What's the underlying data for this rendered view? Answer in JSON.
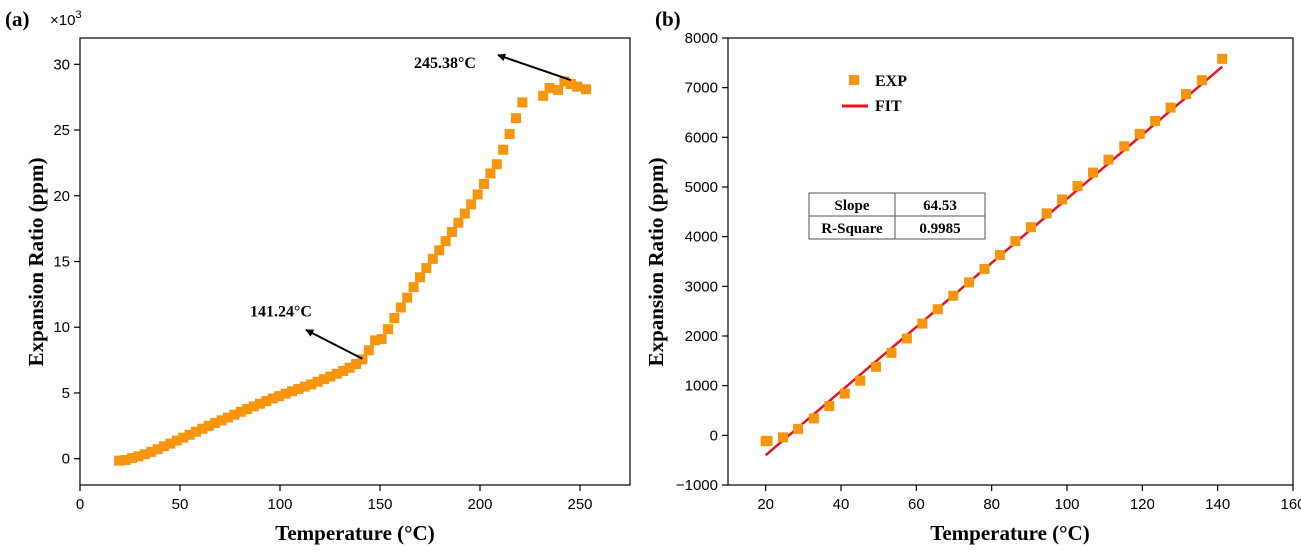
{
  "colors": {
    "exp": "#f7950f",
    "fit": "#e8141b",
    "arrow": "#000000"
  },
  "chart_data": [
    {
      "panel_label": "(a)",
      "type": "scatter",
      "xlabel": "Temperature (°C)",
      "ylabel": "Expansion Ratio (ppm)",
      "y_multiplier": "×10",
      "y_multiplier_exp": "3",
      "xlim": [
        0,
        275
      ],
      "ylim": [
        -2,
        32
      ],
      "xticks": [
        0,
        50,
        100,
        150,
        200,
        250
      ],
      "yticks": [
        0,
        5,
        10,
        15,
        20,
        25,
        30
      ],
      "series": [
        {
          "marker": "square",
          "points": [
            [
              19.6,
              -0.15
            ],
            [
              22.8,
              -0.1
            ],
            [
              26,
              0.05
            ],
            [
              29.2,
              0.18
            ],
            [
              32.4,
              0.34
            ],
            [
              35.6,
              0.52
            ],
            [
              38.8,
              0.72
            ],
            [
              42,
              0.95
            ],
            [
              45.2,
              1.15
            ],
            [
              48.4,
              1.38
            ],
            [
              51.6,
              1.6
            ],
            [
              54.8,
              1.82
            ],
            [
              58,
              2.05
            ],
            [
              61.2,
              2.28
            ],
            [
              64.4,
              2.5
            ],
            [
              67.6,
              2.72
            ],
            [
              70.8,
              2.92
            ],
            [
              74,
              3.13
            ],
            [
              77.2,
              3.35
            ],
            [
              80.4,
              3.57
            ],
            [
              83.6,
              3.78
            ],
            [
              86.8,
              3.98
            ],
            [
              90,
              4.18
            ],
            [
              93.2,
              4.38
            ],
            [
              96.4,
              4.58
            ],
            [
              99.6,
              4.76
            ],
            [
              102.8,
              4.95
            ],
            [
              106,
              5.13
            ],
            [
              109.2,
              5.3
            ],
            [
              112.4,
              5.48
            ],
            [
              115.6,
              5.65
            ],
            [
              118.8,
              5.85
            ],
            [
              122,
              6.05
            ],
            [
              125.2,
              6.25
            ],
            [
              128.4,
              6.46
            ],
            [
              131.6,
              6.67
            ],
            [
              134.8,
              6.92
            ],
            [
              138,
              7.2
            ],
            [
              141.2,
              7.55
            ],
            [
              144.4,
              8.25
            ],
            [
              147.6,
              9.0
            ],
            [
              150.8,
              9.1
            ],
            [
              154,
              9.85
            ],
            [
              157.2,
              10.7
            ],
            [
              160.4,
              11.5
            ],
            [
              163.6,
              12.25
            ],
            [
              166.8,
              13.05
            ],
            [
              170,
              13.8
            ],
            [
              173.2,
              14.5
            ],
            [
              176.4,
              15.2
            ],
            [
              179.6,
              15.85
            ],
            [
              182.8,
              16.55
            ],
            [
              186,
              17.25
            ],
            [
              189.2,
              17.95
            ],
            [
              192.4,
              18.65
            ],
            [
              195.6,
              19.35
            ],
            [
              198.8,
              20.1
            ],
            [
              202,
              20.9
            ],
            [
              205.2,
              21.7
            ],
            [
              208.4,
              22.4
            ],
            [
              211.6,
              23.5
            ],
            [
              214.8,
              24.7
            ],
            [
              218,
              25.9
            ],
            [
              221.2,
              27.1
            ],
            [
              231.6,
              27.6
            ],
            [
              234.8,
              28.2
            ],
            [
              239,
              28.05
            ],
            [
              242.2,
              28.7
            ],
            [
              245.4,
              28.5
            ],
            [
              248.6,
              28.3
            ],
            [
              253,
              28.1
            ]
          ]
        }
      ],
      "annotations": [
        {
          "text": "141.24°C",
          "from": [
            141.2,
            7.6
          ],
          "to": [
            113,
            9.8
          ],
          "text_at": [
            85,
            10.8
          ]
        },
        {
          "text": "245.38°C",
          "from": [
            245.4,
            28.8
          ],
          "to": [
            209,
            30.7
          ],
          "text_at": [
            167,
            29.7
          ]
        }
      ]
    },
    {
      "panel_label": "(b)",
      "type": "scatter",
      "xlabel": "Temperature (°C)",
      "ylabel": "Expansion Ratio (ppm)",
      "xlim": [
        10,
        160
      ],
      "ylim": [
        -1000,
        8000
      ],
      "xticks": [
        20,
        40,
        60,
        80,
        100,
        120,
        140,
        160
      ],
      "yticks": [
        -1000,
        0,
        1000,
        2000,
        3000,
        4000,
        5000,
        6000,
        7000,
        8000
      ],
      "series": [
        {
          "name": "EXP",
          "marker": "square",
          "points": [
            [
              20,
              -120
            ],
            [
              20.5,
              -110
            ],
            [
              24.6,
              -40
            ],
            [
              28.6,
              130
            ],
            [
              32.8,
              340
            ],
            [
              36.9,
              590
            ],
            [
              41,
              840
            ],
            [
              45.1,
              1100
            ],
            [
              49.3,
              1380
            ],
            [
              53.4,
              1660
            ],
            [
              57.5,
              1950
            ],
            [
              61.6,
              2250
            ],
            [
              65.7,
              2540
            ],
            [
              69.8,
              2810
            ],
            [
              74,
              3080
            ],
            [
              78.1,
              3350
            ],
            [
              82.2,
              3630
            ],
            [
              86.3,
              3910
            ],
            [
              90.4,
              4190
            ],
            [
              94.6,
              4470
            ],
            [
              98.7,
              4750
            ],
            [
              102.8,
              5020
            ],
            [
              106.9,
              5290
            ],
            [
              111,
              5550
            ],
            [
              115.2,
              5820
            ],
            [
              119.3,
              6070
            ],
            [
              123.4,
              6330
            ],
            [
              127.5,
              6600
            ],
            [
              131.6,
              6870
            ],
            [
              135.8,
              7150
            ],
            [
              141.2,
              7580
            ]
          ]
        },
        {
          "name": "FIT",
          "line": {
            "slope": 64.53,
            "intercept": -1690,
            "x_range": [
              20,
              141.2
            ]
          }
        }
      ],
      "legend": {
        "placement": "top-left",
        "entries": [
          "EXP",
          "FIT"
        ]
      },
      "stats_table": {
        "rows": [
          [
            "Slope",
            "64.53"
          ],
          [
            "R-Square",
            "0.9985"
          ]
        ]
      }
    }
  ]
}
